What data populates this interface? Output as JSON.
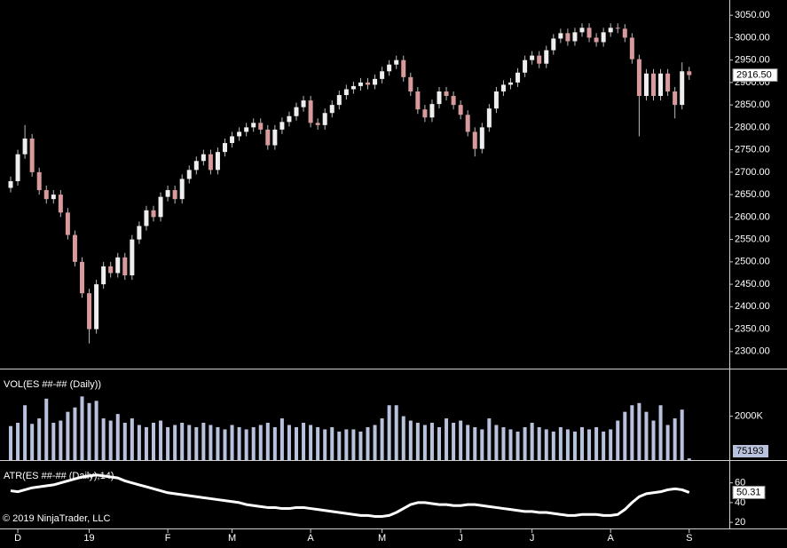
{
  "chart_data": [
    {
      "type": "candlestick",
      "categories": [
        null,
        "D",
        null,
        null,
        null,
        null,
        null,
        null,
        null,
        null,
        null,
        "19",
        null,
        null,
        null,
        null,
        null,
        null,
        null,
        null,
        null,
        null,
        "F",
        null,
        null,
        null,
        null,
        null,
        null,
        null,
        null,
        "M",
        null,
        null,
        null,
        null,
        null,
        null,
        null,
        null,
        null,
        null,
        "A",
        null,
        null,
        null,
        null,
        null,
        null,
        null,
        null,
        null,
        "M",
        null,
        null,
        null,
        null,
        null,
        null,
        null,
        null,
        null,
        null,
        "J",
        null,
        null,
        null,
        null,
        null,
        null,
        null,
        null,
        null,
        "J",
        null,
        null,
        null,
        null,
        null,
        null,
        null,
        null,
        null,
        null,
        "A",
        null,
        null,
        null,
        null,
        null,
        null,
        null,
        null,
        null,
        null,
        "S"
      ],
      "open": [
        2665,
        2680,
        2740,
        2775,
        2700,
        2660,
        2640,
        2650,
        2610,
        2560,
        2500,
        2430,
        2350,
        2450,
        2490,
        2475,
        2510,
        2470,
        2550,
        2580,
        2615,
        2600,
        2645,
        2660,
        2640,
        2685,
        2705,
        2725,
        2740,
        2705,
        2745,
        2765,
        2780,
        2790,
        2800,
        2810,
        2795,
        2760,
        2795,
        2812,
        2825,
        2845,
        2860,
        2810,
        2805,
        2832,
        2850,
        2872,
        2885,
        2892,
        2900,
        2895,
        2908,
        2925,
        2940,
        2950,
        2912,
        2880,
        2840,
        2822,
        2852,
        2880,
        2870,
        2850,
        2828,
        2790,
        2752,
        2800,
        2842,
        2880,
        2895,
        2900,
        2922,
        2950,
        2960,
        2942,
        2972,
        2998,
        3010,
        2992,
        3012,
        3022,
        3000,
        2990,
        3012,
        3022,
        3020,
        3000,
        2952,
        2870,
        2920,
        2870,
        2920,
        2880,
        2850,
        2925
      ],
      "high": [
        2690,
        2750,
        2805,
        2785,
        2710,
        2670,
        2660,
        2660,
        2620,
        2570,
        2510,
        2440,
        2460,
        2500,
        2500,
        2520,
        2520,
        2560,
        2590,
        2625,
        2625,
        2655,
        2670,
        2670,
        2695,
        2715,
        2735,
        2750,
        2750,
        2755,
        2775,
        2790,
        2800,
        2810,
        2820,
        2820,
        2805,
        2805,
        2822,
        2835,
        2855,
        2870,
        2870,
        2820,
        2842,
        2860,
        2882,
        2895,
        2902,
        2910,
        2910,
        2918,
        2935,
        2950,
        2960,
        2960,
        2922,
        2890,
        2850,
        2862,
        2890,
        2890,
        2880,
        2860,
        2838,
        2800,
        2810,
        2852,
        2890,
        2905,
        2910,
        2932,
        2960,
        2970,
        2970,
        2982,
        3008,
        3020,
        3020,
        3022,
        3032,
        3032,
        3010,
        3022,
        3032,
        3032,
        3030,
        3010,
        2962,
        2930,
        2930,
        2930,
        2930,
        2890,
        2945,
        2935
      ],
      "low": [
        2655,
        2670,
        2730,
        2690,
        2650,
        2630,
        2630,
        2600,
        2550,
        2490,
        2420,
        2318,
        2340,
        2440,
        2465,
        2465,
        2460,
        2460,
        2540,
        2570,
        2590,
        2590,
        2635,
        2630,
        2630,
        2675,
        2695,
        2715,
        2695,
        2695,
        2735,
        2755,
        2770,
        2780,
        2790,
        2785,
        2750,
        2750,
        2785,
        2802,
        2815,
        2835,
        2800,
        2795,
        2795,
        2822,
        2840,
        2862,
        2875,
        2882,
        2885,
        2885,
        2898,
        2915,
        2930,
        2902,
        2870,
        2830,
        2812,
        2812,
        2842,
        2860,
        2840,
        2818,
        2780,
        2735,
        2742,
        2790,
        2832,
        2870,
        2885,
        2890,
        2912,
        2940,
        2932,
        2932,
        2962,
        2988,
        2982,
        2982,
        3002,
        2990,
        2980,
        2980,
        3002,
        3010,
        2990,
        2942,
        2780,
        2860,
        2860,
        2860,
        2870,
        2820,
        2840,
        2906
      ],
      "close": [
        2680,
        2740,
        2775,
        2700,
        2660,
        2640,
        2650,
        2610,
        2560,
        2500,
        2430,
        2350,
        2450,
        2490,
        2475,
        2510,
        2470,
        2550,
        2580,
        2615,
        2600,
        2645,
        2660,
        2640,
        2685,
        2705,
        2725,
        2740,
        2705,
        2745,
        2765,
        2780,
        2790,
        2800,
        2810,
        2795,
        2760,
        2795,
        2812,
        2825,
        2845,
        2860,
        2810,
        2805,
        2832,
        2850,
        2872,
        2885,
        2892,
        2900,
        2895,
        2908,
        2925,
        2940,
        2950,
        2912,
        2880,
        2840,
        2822,
        2852,
        2880,
        2870,
        2850,
        2828,
        2790,
        2752,
        2800,
        2842,
        2880,
        2895,
        2900,
        2922,
        2950,
        2960,
        2942,
        2972,
        2998,
        3010,
        2992,
        3012,
        3022,
        3000,
        2990,
        3012,
        3022,
        3020,
        3000,
        2952,
        2870,
        2920,
        2870,
        2920,
        2880,
        2850,
        2925,
        2916.5
      ],
      "close_label": "2916.50",
      "up_color": "#eeeeee",
      "down_color": "#d89a9a",
      "ylim": [
        2262,
        3084
      ],
      "yticks": [
        {
          "value": 2300,
          "label": "2300.00"
        },
        {
          "value": 2350,
          "label": "2350.00"
        },
        {
          "value": 2400,
          "label": "2400.00"
        },
        {
          "value": 2450,
          "label": "2450.00"
        },
        {
          "value": 2500,
          "label": "2500.00"
        },
        {
          "value": 2550,
          "label": "2550.00"
        },
        {
          "value": 2600,
          "label": "2600.00"
        },
        {
          "value": 2650,
          "label": "2650.00"
        },
        {
          "value": 2700,
          "label": "2700.00"
        },
        {
          "value": 2750,
          "label": "2750.00"
        },
        {
          "value": 2800,
          "label": "2800.00"
        },
        {
          "value": 2850,
          "label": "2850.00"
        },
        {
          "value": 2900,
          "label": "2900.00"
        },
        {
          "value": 2950,
          "label": "2950.00"
        },
        {
          "value": 3000,
          "label": "3000.00"
        },
        {
          "value": 3050,
          "label": "3050.00"
        }
      ],
      "grid": false
    },
    {
      "type": "bar",
      "title": "VOL(ES ##-## (Daily))",
      "color": "#b9c2dc",
      "values": [
        1550000,
        1700000,
        2500000,
        1650000,
        1900000,
        2800000,
        1700000,
        1800000,
        2200000,
        2400000,
        2900000,
        2600000,
        2700000,
        1900000,
        1800000,
        2100000,
        1700000,
        1900000,
        1600000,
        1500000,
        1700000,
        1800000,
        1500000,
        1600000,
        1700000,
        1600000,
        1500000,
        1700000,
        1600000,
        1500000,
        1400000,
        1600000,
        1500000,
        1400000,
        1500000,
        1600000,
        1700000,
        1500000,
        1900000,
        1600000,
        1500000,
        1700000,
        1600000,
        1500000,
        1400000,
        1500000,
        1300000,
        1400000,
        1400000,
        1300000,
        1500000,
        1600000,
        1900000,
        2500000,
        2500000,
        2000000,
        1800000,
        1700000,
        1600000,
        1700000,
        1500000,
        1900000,
        1700000,
        1800000,
        1600000,
        1500000,
        1400000,
        1900000,
        1600000,
        1500000,
        1400000,
        1300000,
        1500000,
        1700000,
        1500000,
        1400000,
        1300000,
        1500000,
        1400000,
        1300000,
        1500000,
        1400000,
        1500000,
        1300000,
        1400000,
        1800000,
        2200000,
        2500000,
        2600000,
        2200000,
        1800000,
        2500000,
        1600000,
        1900000,
        2300000,
        75193
      ],
      "ylim": [
        0,
        4130000
      ],
      "yticks": [
        {
          "value": 2000000,
          "label": "2000K"
        }
      ],
      "grid": false
    },
    {
      "type": "line",
      "title": "ATR(ES ##-## (Daily),14)",
      "color": "#ffffff",
      "values": [
        52,
        51,
        53,
        55,
        56,
        57,
        58,
        60,
        62,
        64,
        66,
        67,
        68,
        67,
        66,
        65,
        62,
        60,
        58,
        56,
        54,
        52,
        50,
        49,
        48,
        47,
        46,
        45,
        44,
        43,
        42,
        41,
        40,
        38,
        37,
        36,
        35,
        35,
        34,
        34,
        35,
        35,
        34,
        33,
        32,
        31,
        30,
        29,
        28,
        27,
        27,
        26,
        26,
        27,
        30,
        34,
        38,
        40,
        40,
        39,
        38,
        38,
        37,
        37,
        38,
        38,
        37,
        36,
        35,
        34,
        33,
        32,
        31,
        31,
        30,
        30,
        29,
        28,
        27,
        27,
        28,
        28,
        28,
        27,
        27,
        28,
        33,
        40,
        46,
        49,
        50,
        51,
        53,
        54,
        53,
        50.31
      ],
      "ylim": [
        13.8,
        82.2
      ],
      "yticks": [
        20,
        40,
        60
      ],
      "grid": false
    }
  ],
  "copyright": "© 2019 NinjaTrader, LLC"
}
